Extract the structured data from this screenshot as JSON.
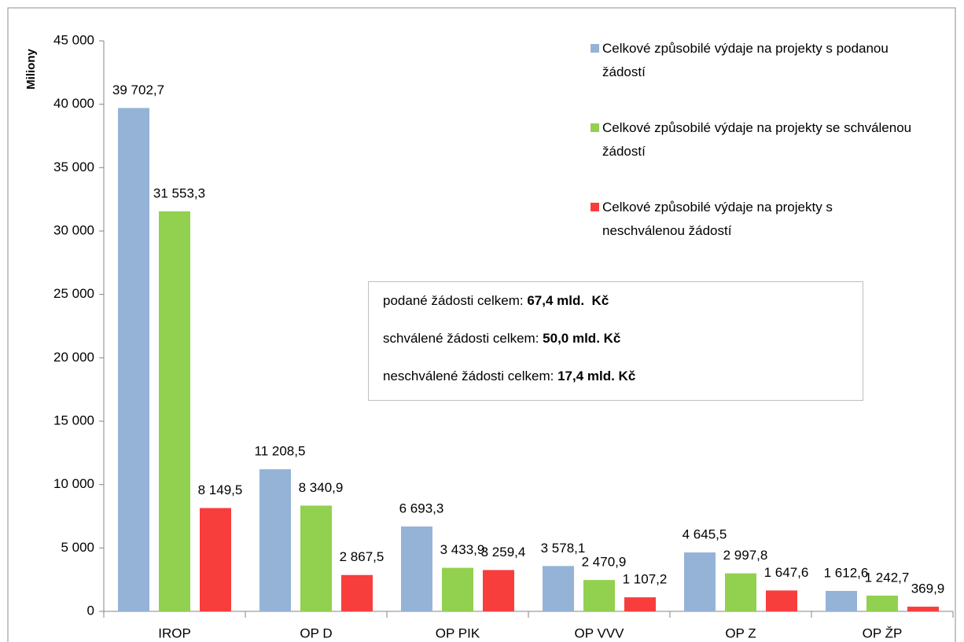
{
  "chart_data": {
    "type": "bar",
    "y_label": "Miliony",
    "categories": [
      "IROP",
      "OP D",
      "OP PIK",
      "OP VVV",
      "OP Z",
      "OP ŽP"
    ],
    "series": [
      {
        "name": "Celkové způsobilé výdaje na projekty s podanou žádostí",
        "color": "#95b3d7",
        "values": [
          39702.7,
          11208.5,
          6693.3,
          3578.1,
          4645.5,
          1612.6
        ],
        "value_labels": [
          "39 702,7",
          "11 208,5",
          "6 693,3",
          "3 578,1",
          "4 645,5",
          "1 612,6"
        ]
      },
      {
        "name": "Celkové způsobilé výdaje na projekty se schválenou žádostí",
        "color": "#92d050",
        "values": [
          31553.3,
          8340.9,
          3433.9,
          2470.9,
          2997.8,
          1242.7
        ],
        "value_labels": [
          "31 553,3",
          "8 340,9",
          "3 433,9",
          "2 470,9",
          "2 997,8",
          "1 242,7"
        ]
      },
      {
        "name": "Celkové způsobilé výdaje na projekty s neschválenou žádostí",
        "color": "#f83d3d",
        "values": [
          8149.5,
          2867.5,
          3259.4,
          1107.2,
          1647.6,
          369.9
        ],
        "value_labels": [
          "8 149,5",
          "2 867,5",
          "3 259,4",
          "1 107,2",
          "1 647,6",
          "369,9"
        ]
      }
    ],
    "ylim": [
      0,
      45000
    ],
    "yticks": [
      0,
      {
        "value": 5000,
        "label": "5 000"
      },
      {
        "value": 10000,
        "label": "10 000"
      },
      {
        "value": 15000,
        "label": "15 000"
      },
      {
        "value": 20000,
        "label": "20 000"
      },
      {
        "value": 25000,
        "label": "25 000"
      },
      {
        "value": 30000,
        "label": "30 000"
      },
      {
        "value": 35000,
        "label": "35 000"
      },
      {
        "value": 40000,
        "label": "40 000"
      },
      {
        "value": 45000,
        "label": "45 000"
      }
    ],
    "legend": "top-right",
    "annotations": [
      {
        "text": "podané žádosti celkem: ",
        "bold": "67,4 mld.  Kč"
      },
      {
        "text": "schválené žádosti celkem: ",
        "bold": "50,0 mld. Kč"
      },
      {
        "text": "neschválené žádosti celkem: ",
        "bold": "17,4 mld. Kč"
      }
    ]
  }
}
